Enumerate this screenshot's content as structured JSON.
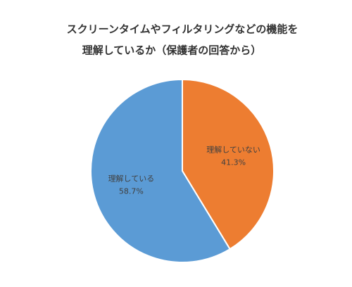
{
  "chart_data": {
    "type": "pie",
    "title": [
      "スクリーンタイムやフィルタリングなどの機能を",
      "理解しているか（保護者の回答から）"
    ],
    "categories": [
      "理解していない",
      "理解している"
    ],
    "values": [
      41.3,
      58.7
    ],
    "value_labels": [
      "41.3%",
      "58.7%"
    ],
    "colors": [
      "#ed7d31",
      "#5b9bd5"
    ]
  }
}
